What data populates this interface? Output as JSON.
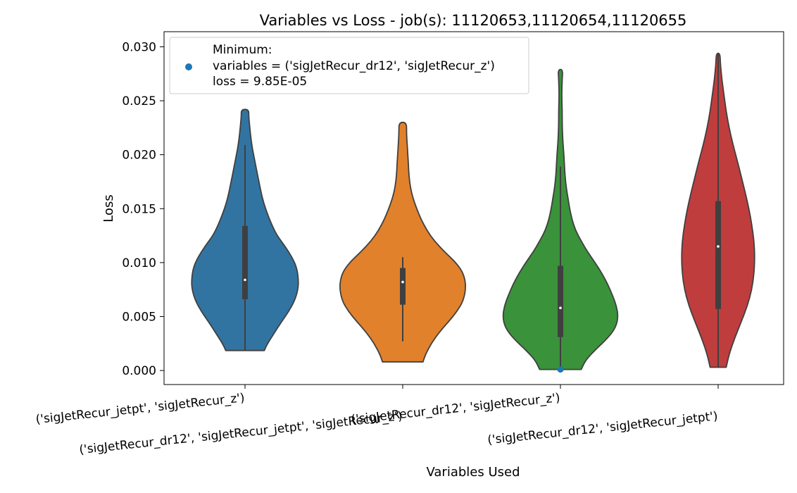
{
  "chart_data": {
    "type": "violin",
    "title": "Variables vs Loss - job(s): 11120653,11120654,11120655",
    "xlabel": "Variables Used",
    "ylabel": "Loss",
    "ylim": [
      -0.0013,
      0.0314
    ],
    "yticks": [
      0.0,
      0.005,
      0.01,
      0.015,
      0.02,
      0.025,
      0.03
    ],
    "ytick_labels": [
      "0.000",
      "0.005",
      "0.010",
      "0.015",
      "0.020",
      "0.025",
      "0.030"
    ],
    "categories": [
      "('sigJetRecur_jetpt', 'sigJetRecur_z')",
      "('sigJetRecur_dr12', 'sigJetRecur_jetpt', 'sigJetRecur_z')",
      "('sigJetRecur_dr12', 'sigJetRecur_z')",
      "('sigJetRecur_dr12', 'sigJetRecur_jetpt')"
    ],
    "series": [
      {
        "color": "#3274a1",
        "min": 0.00185,
        "max": 0.0242,
        "q1": 0.0066,
        "median": 0.0084,
        "q3": 0.0134,
        "whisker_low": 0.00185,
        "whisker_high": 0.0209,
        "profile": [
          [
            0.00185,
            0.36
          ],
          [
            0.0025,
            0.42
          ],
          [
            0.0035,
            0.55
          ],
          [
            0.0045,
            0.68
          ],
          [
            0.0055,
            0.82
          ],
          [
            0.0065,
            0.93
          ],
          [
            0.0075,
            0.99
          ],
          [
            0.0083,
            1.0
          ],
          [
            0.0095,
            0.97
          ],
          [
            0.0105,
            0.88
          ],
          [
            0.0115,
            0.75
          ],
          [
            0.0125,
            0.6
          ],
          [
            0.0135,
            0.5
          ],
          [
            0.0145,
            0.42
          ],
          [
            0.0155,
            0.35
          ],
          [
            0.0165,
            0.3
          ],
          [
            0.0175,
            0.26
          ],
          [
            0.0185,
            0.22
          ],
          [
            0.0195,
            0.18
          ],
          [
            0.0205,
            0.14
          ],
          [
            0.0215,
            0.11
          ],
          [
            0.0225,
            0.09
          ],
          [
            0.0235,
            0.07
          ],
          [
            0.0242,
            0.07
          ]
        ]
      },
      {
        "color": "#e1812c",
        "min": 0.0008,
        "max": 0.023,
        "q1": 0.0061,
        "median": 0.0082,
        "q3": 0.0095,
        "whisker_low": 0.0027,
        "whisker_high": 0.0105,
        "profile": [
          [
            0.0008,
            0.32
          ],
          [
            0.0015,
            0.36
          ],
          [
            0.0025,
            0.45
          ],
          [
            0.0035,
            0.57
          ],
          [
            0.0045,
            0.72
          ],
          [
            0.0055,
            0.86
          ],
          [
            0.0065,
            0.96
          ],
          [
            0.0078,
            1.0
          ],
          [
            0.009,
            0.96
          ],
          [
            0.01,
            0.84
          ],
          [
            0.011,
            0.66
          ],
          [
            0.012,
            0.5
          ],
          [
            0.013,
            0.38
          ],
          [
            0.014,
            0.29
          ],
          [
            0.015,
            0.22
          ],
          [
            0.016,
            0.16
          ],
          [
            0.017,
            0.12
          ],
          [
            0.018,
            0.1
          ],
          [
            0.019,
            0.09
          ],
          [
            0.02,
            0.08
          ],
          [
            0.021,
            0.07
          ],
          [
            0.022,
            0.06
          ],
          [
            0.023,
            0.06
          ]
        ]
      },
      {
        "color": "#3a923a",
        "min": 0.0001,
        "max": 0.0279,
        "q1": 0.0031,
        "median": 0.0058,
        "q3": 0.0097,
        "whisker_low": 0.0001,
        "whisker_high": 0.0189,
        "profile": [
          [
            0.0001,
            0.36
          ],
          [
            0.001,
            0.44
          ],
          [
            0.002,
            0.62
          ],
          [
            0.003,
            0.82
          ],
          [
            0.004,
            0.96
          ],
          [
            0.005,
            1.0
          ],
          [
            0.006,
            0.97
          ],
          [
            0.007,
            0.9
          ],
          [
            0.008,
            0.82
          ],
          [
            0.009,
            0.72
          ],
          [
            0.01,
            0.6
          ],
          [
            0.011,
            0.47
          ],
          [
            0.012,
            0.36
          ],
          [
            0.013,
            0.26
          ],
          [
            0.014,
            0.2
          ],
          [
            0.015,
            0.16
          ],
          [
            0.016,
            0.13
          ],
          [
            0.017,
            0.1
          ],
          [
            0.018,
            0.08
          ],
          [
            0.019,
            0.07
          ],
          [
            0.02,
            0.06
          ],
          [
            0.021,
            0.045
          ],
          [
            0.022,
            0.035
          ],
          [
            0.023,
            0.03
          ],
          [
            0.024,
            0.03
          ],
          [
            0.025,
            0.025
          ],
          [
            0.026,
            0.025
          ],
          [
            0.027,
            0.03
          ],
          [
            0.0279,
            0.04
          ]
        ]
      },
      {
        "color": "#c03d3e",
        "min": 0.0003,
        "max": 0.0294,
        "q1": 0.0057,
        "median": 0.0115,
        "q3": 0.0157,
        "whisker_low": 0.0003,
        "whisker_high": 0.0294,
        "profile": [
          [
            0.0003,
            0.22
          ],
          [
            0.0015,
            0.3
          ],
          [
            0.003,
            0.45
          ],
          [
            0.0045,
            0.63
          ],
          [
            0.006,
            0.8
          ],
          [
            0.0075,
            0.92
          ],
          [
            0.009,
            0.98
          ],
          [
            0.0105,
            1.0
          ],
          [
            0.012,
            0.98
          ],
          [
            0.0135,
            0.92
          ],
          [
            0.015,
            0.84
          ],
          [
            0.0165,
            0.74
          ],
          [
            0.018,
            0.63
          ],
          [
            0.0195,
            0.52
          ],
          [
            0.021,
            0.4
          ],
          [
            0.0225,
            0.3
          ],
          [
            0.024,
            0.22
          ],
          [
            0.0255,
            0.16
          ],
          [
            0.027,
            0.1
          ],
          [
            0.0285,
            0.06
          ],
          [
            0.0294,
            0.05
          ]
        ]
      }
    ],
    "minimum_point": {
      "category_index": 2,
      "y": 9.85e-05,
      "color": "#1f77b4"
    },
    "legend": {
      "placement": "top-left",
      "lines": [
        "Minimum:",
        "variables = ('sigJetRecur_dr12', 'sigJetRecur_z')",
        "loss = 9.85E-05"
      ]
    }
  }
}
